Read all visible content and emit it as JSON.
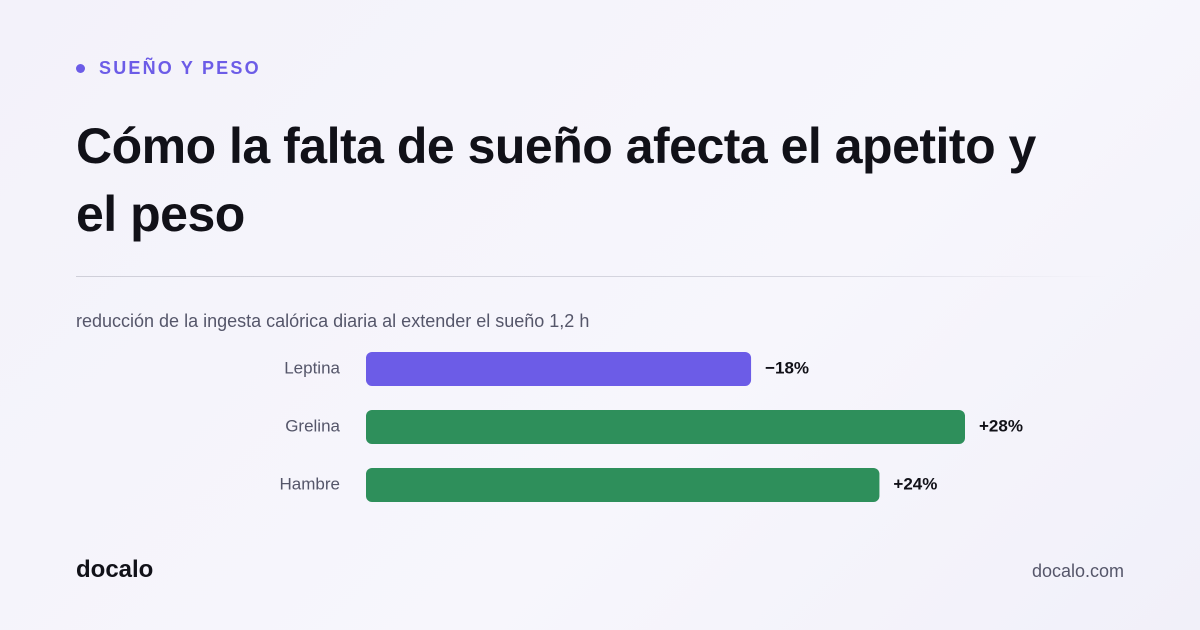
{
  "kicker": "SUEÑO Y PESO",
  "brand": "docalo",
  "site": "docalo.com",
  "chart_data": {
    "type": "bar",
    "orientation": "horizontal",
    "title": "Cómo la falta de sueño afecta el apetito y el peso",
    "subtitle": "reducción de la ingesta calórica diaria al extender el sueño 1,2 h",
    "categories": [
      "Leptina",
      "Grelina",
      "Hambre"
    ],
    "values": [
      -18,
      28,
      24
    ],
    "value_labels": [
      "−18%",
      "+28%",
      "+24%"
    ],
    "colors": [
      "#6c5ce7",
      "#2e8f5b",
      "#2e8f5b"
    ]
  }
}
